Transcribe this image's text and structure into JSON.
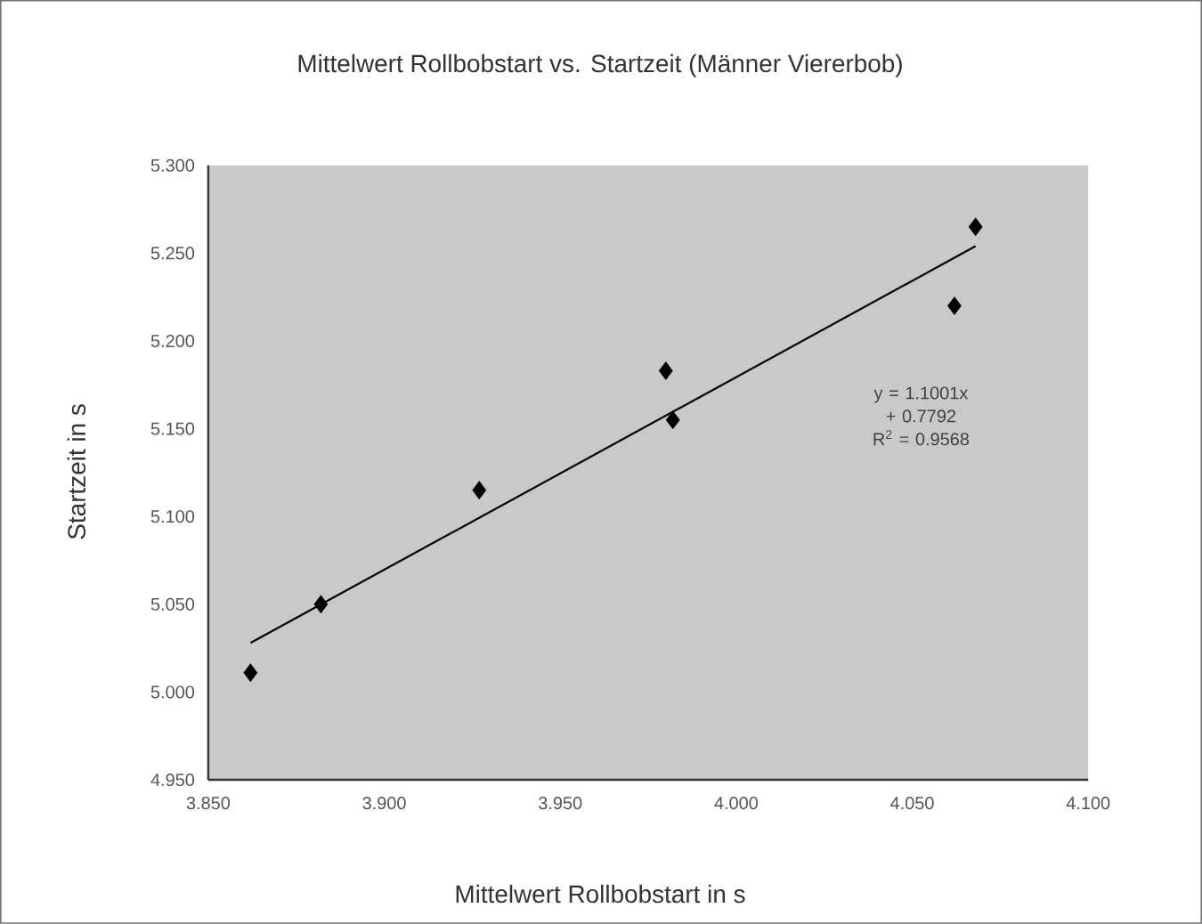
{
  "chart_data": {
    "type": "scatter",
    "title": "Mittelwert Rollbobstart vs. Startzeit (Männer Viererbob)",
    "xlabel": "Mittelwert Rollbobstart in s",
    "ylabel": "Startzeit in s",
    "series": [
      {
        "marker": "diamond",
        "color": "#000000",
        "x": [
          3.862,
          3.882,
          3.927,
          3.98,
          3.982,
          4.062,
          4.068
        ],
        "values": [
          5.011,
          5.05,
          5.115,
          5.183,
          5.155,
          5.22,
          5.265
        ]
      },
      {
        "type": "line",
        "marker": "none",
        "line_style": "solid",
        "color": "#000000",
        "x": [
          3.862,
          4.068
        ],
        "values": [
          5.028,
          5.254
        ]
      }
    ],
    "xlim": [
      3.85,
      4.1
    ],
    "ylim": [
      4.95,
      5.3
    ],
    "xticks": [
      {
        "value": 3.85,
        "label": "3.850"
      },
      {
        "value": 3.9,
        "label": "3.900"
      },
      {
        "value": 3.95,
        "label": "3.950"
      },
      {
        "value": 4.0,
        "label": "4.000"
      },
      {
        "value": 4.05,
        "label": "4.050"
      },
      {
        "value": 4.1,
        "label": "4.100"
      }
    ],
    "yticks": [
      {
        "value": 4.95,
        "label": "4.950"
      },
      {
        "value": 5.0,
        "label": "5.000"
      },
      {
        "value": 5.05,
        "label": "5.050"
      },
      {
        "value": 5.1,
        "label": "5.100"
      },
      {
        "value": 5.15,
        "label": "5.150"
      },
      {
        "value": 5.2,
        "label": "5.200"
      },
      {
        "value": 5.25,
        "label": "5.250"
      },
      {
        "value": 5.3,
        "label": "5.300"
      }
    ],
    "annotations": [
      "y = 1.1001x + 0.7792",
      "R$^{2}$ = 0.9568"
    ]
  }
}
